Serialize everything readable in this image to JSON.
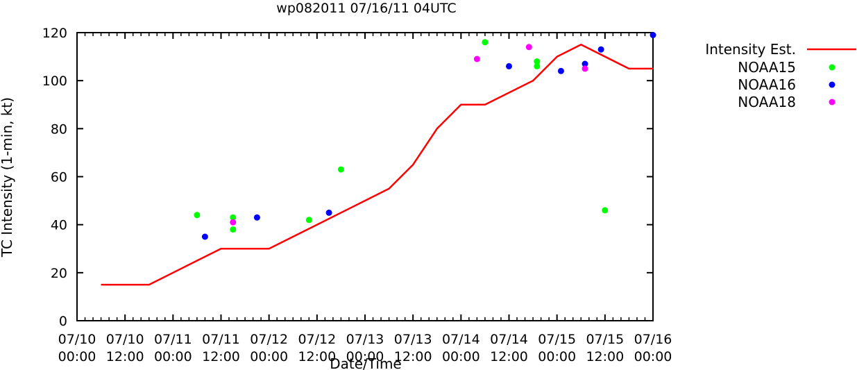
{
  "chart_data": {
    "type": "line",
    "title": "wp082011 07/16/11 04UTC",
    "xlabel": "Date/Time",
    "ylabel": "TC Intensity (1-min, kt)",
    "xlim": [
      "07/10 00:00",
      "07/16 00:00"
    ],
    "ylim": [
      0,
      120
    ],
    "yticks": [
      0,
      20,
      40,
      60,
      80,
      100,
      120
    ],
    "xticks": [
      {
        "line1": "07/10",
        "line2": "00:00",
        "hour": 0
      },
      {
        "line1": "07/10",
        "line2": "12:00",
        "hour": 12
      },
      {
        "line1": "07/11",
        "line2": "00:00",
        "hour": 24
      },
      {
        "line1": "07/11",
        "line2": "12:00",
        "hour": 36
      },
      {
        "line1": "07/12",
        "line2": "00:00",
        "hour": 48
      },
      {
        "line1": "07/12",
        "line2": "12:00",
        "hour": 60
      },
      {
        "line1": "07/13",
        "line2": "00:00",
        "hour": 72
      },
      {
        "line1": "07/13",
        "line2": "12:00",
        "hour": 84
      },
      {
        "line1": "07/14",
        "line2": "00:00",
        "hour": 96
      },
      {
        "line1": "07/14",
        "line2": "12:00",
        "hour": 108
      },
      {
        "line1": "07/15",
        "line2": "00:00",
        "hour": 120
      },
      {
        "line1": "07/15",
        "line2": "12:00",
        "hour": 132
      },
      {
        "line1": "07/16",
        "line2": "00:00",
        "hour": 144
      }
    ],
    "grid": false,
    "legend_position": "outside-right",
    "series": [
      {
        "name": "Intensity Est.",
        "kind": "line",
        "color": "#ff0000",
        "points": [
          [
            6,
            15
          ],
          [
            18,
            15
          ],
          [
            30,
            25
          ],
          [
            36,
            30
          ],
          [
            48,
            30
          ],
          [
            60,
            40
          ],
          [
            72,
            50
          ],
          [
            78,
            55
          ],
          [
            84,
            65
          ],
          [
            90,
            80
          ],
          [
            96,
            90
          ],
          [
            102,
            90
          ],
          [
            114,
            100
          ],
          [
            120,
            110
          ],
          [
            126,
            115
          ],
          [
            138,
            105
          ],
          [
            144,
            105
          ]
        ]
      },
      {
        "name": "NOAA15",
        "kind": "scatter",
        "color": "#00ff00",
        "points": [
          [
            30,
            44
          ],
          [
            39,
            43
          ],
          [
            39,
            38
          ],
          [
            58,
            42
          ],
          [
            66,
            63
          ],
          [
            102,
            116
          ],
          [
            115,
            108
          ],
          [
            115,
            106
          ],
          [
            132,
            46
          ]
        ]
      },
      {
        "name": "NOAA16",
        "kind": "scatter",
        "color": "#0000ff",
        "points": [
          [
            32,
            35
          ],
          [
            45,
            43
          ],
          [
            63,
            45
          ],
          [
            108,
            106
          ],
          [
            121,
            104
          ],
          [
            127,
            107
          ],
          [
            131,
            113
          ],
          [
            144,
            119
          ]
        ]
      },
      {
        "name": "NOAA18",
        "kind": "scatter",
        "color": "#ff00ff",
        "points": [
          [
            39,
            41
          ],
          [
            100,
            109
          ],
          [
            113,
            114
          ],
          [
            127,
            105
          ]
        ]
      }
    ]
  }
}
